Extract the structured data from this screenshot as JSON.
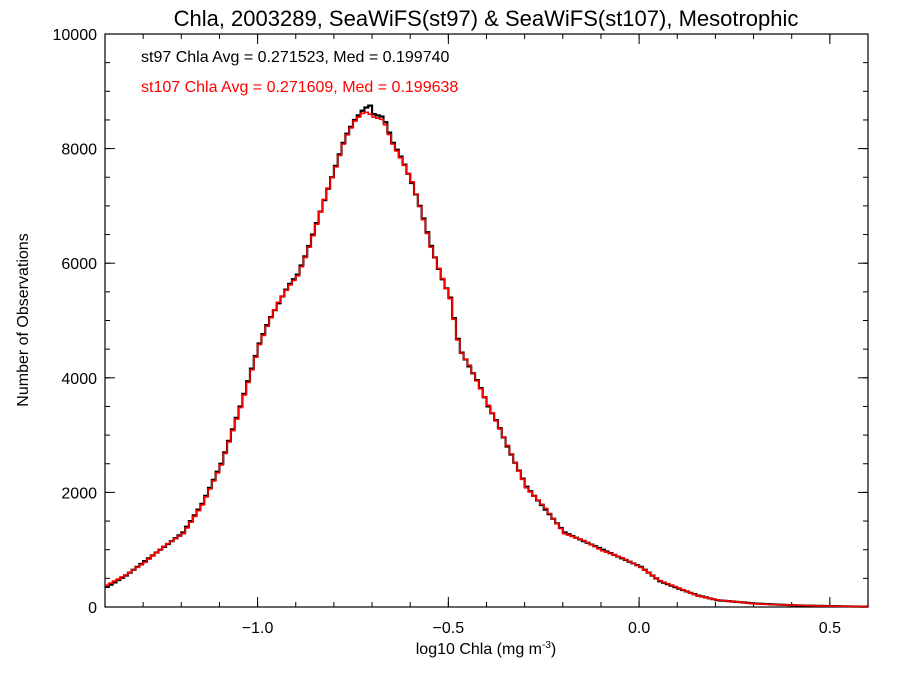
{
  "chart_data": {
    "type": "line",
    "title": "Chla, 2003289, SeaWiFS(st97) & SeaWiFS(st107), Mesotrophic",
    "xlabel": "log10 Chla (mg m",
    "xlabel_sup": "-3",
    "xlabel_close": ")",
    "ylabel": "Number of Observations",
    "xlim": [
      -1.4,
      0.6
    ],
    "ylim": [
      0,
      10000
    ],
    "x_ticks": [
      -1.0,
      -0.5,
      0.0,
      0.5
    ],
    "x_tick_labels": [
      "−1.0",
      "−0.5",
      "0.0",
      "0.5"
    ],
    "y_ticks": [
      0,
      2000,
      4000,
      6000,
      8000,
      10000
    ],
    "y_tick_labels": [
      "0",
      "2000",
      "4000",
      "6000",
      "8000",
      "10000"
    ],
    "grid": false,
    "annotations": [
      {
        "text": "st97 Chla Avg = 0.271523, Med = 0.199740",
        "color": "#000000"
      },
      {
        "text": "st107 Chla Avg = 0.271609, Med = 0.199638",
        "color": "#ff0000"
      }
    ],
    "series": [
      {
        "color": "#000000",
        "x": [
          -1.4,
          -1.35,
          -1.3,
          -1.25,
          -1.2,
          -1.15,
          -1.1,
          -1.05,
          -1.0,
          -0.975,
          -0.95,
          -0.925,
          -0.9,
          -0.875,
          -0.85,
          -0.825,
          -0.8,
          -0.775,
          -0.75,
          -0.725,
          -0.71,
          -0.7,
          -0.675,
          -0.65,
          -0.625,
          -0.6,
          -0.575,
          -0.55,
          -0.525,
          -0.5,
          -0.475,
          -0.45,
          -0.425,
          -0.4,
          -0.375,
          -0.35,
          -0.3,
          -0.25,
          -0.2,
          -0.15,
          -0.1,
          -0.05,
          0.0,
          0.05,
          0.1,
          0.15,
          0.2,
          0.3,
          0.4,
          0.5,
          0.6
        ],
        "y": [
          350,
          550,
          800,
          1050,
          1300,
          1800,
          2500,
          3500,
          4600,
          5000,
          5300,
          5600,
          5800,
          6200,
          6700,
          7200,
          7700,
          8200,
          8500,
          8700,
          8750,
          8600,
          8550,
          8100,
          7800,
          7400,
          6900,
          6300,
          5800,
          5400,
          4500,
          4200,
          3900,
          3500,
          3200,
          2800,
          2100,
          1700,
          1300,
          1150,
          1000,
          850,
          700,
          450,
          320,
          200,
          120,
          60,
          30,
          15,
          5
        ]
      },
      {
        "color": "#ff0000",
        "x": [
          -1.4,
          -1.35,
          -1.3,
          -1.25,
          -1.2,
          -1.15,
          -1.1,
          -1.05,
          -1.0,
          -0.975,
          -0.95,
          -0.925,
          -0.9,
          -0.875,
          -0.85,
          -0.825,
          -0.8,
          -0.775,
          -0.75,
          -0.725,
          -0.71,
          -0.7,
          -0.675,
          -0.65,
          -0.625,
          -0.6,
          -0.575,
          -0.55,
          -0.525,
          -0.5,
          -0.475,
          -0.45,
          -0.425,
          -0.4,
          -0.375,
          -0.35,
          -0.3,
          -0.25,
          -0.2,
          -0.15,
          -0.1,
          -0.05,
          0.0,
          0.05,
          0.1,
          0.15,
          0.2,
          0.3,
          0.4,
          0.5,
          0.6
        ],
        "y": [
          380,
          560,
          780,
          1060,
          1280,
          1780,
          2480,
          3480,
          4580,
          4980,
          5320,
          5580,
          5780,
          6180,
          6680,
          7220,
          7680,
          8180,
          8480,
          8650,
          8600,
          8550,
          8500,
          8080,
          7780,
          7420,
          6880,
          6280,
          5820,
          5380,
          4480,
          4220,
          3880,
          3520,
          3180,
          2820,
          2080,
          1720,
          1280,
          1160,
          980,
          860,
          690,
          460,
          330,
          190,
          125,
          55,
          32,
          14,
          6
        ]
      }
    ]
  }
}
